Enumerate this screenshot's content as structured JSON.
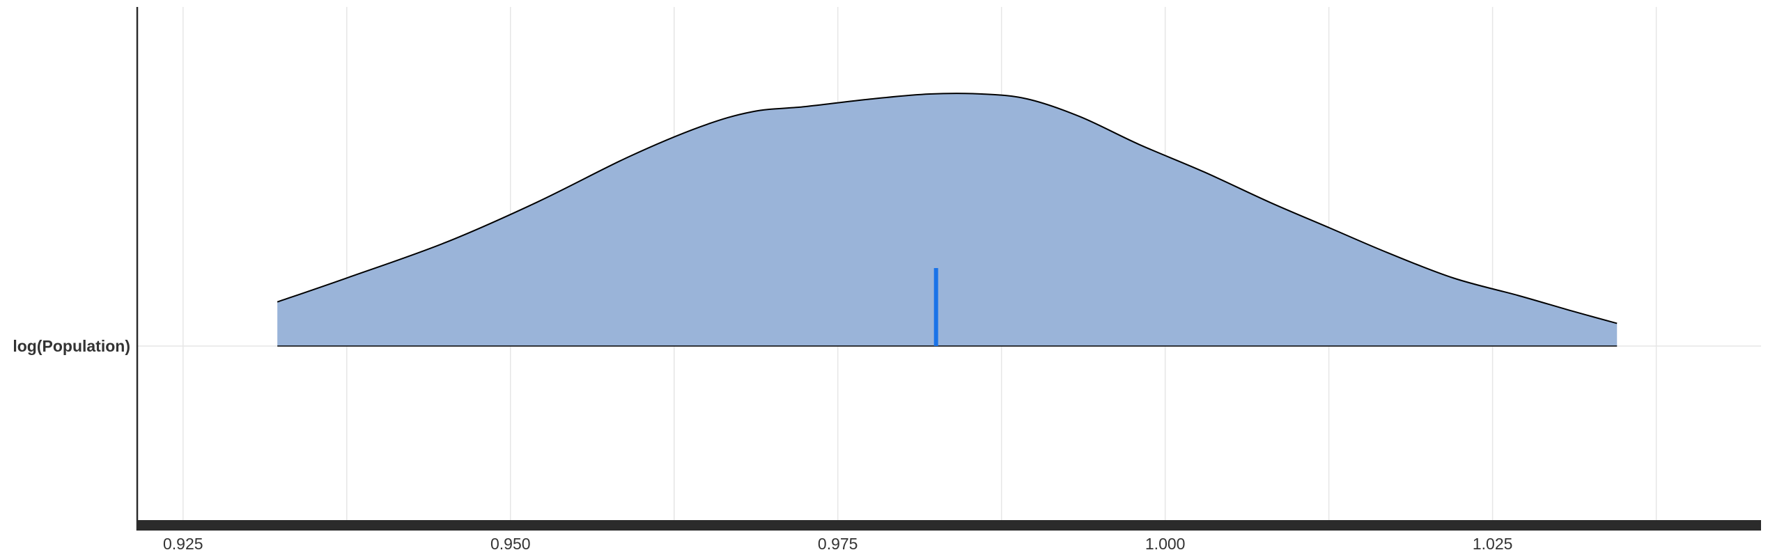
{
  "chart_data": {
    "type": "area",
    "plot_kind": "density ridge",
    "title": "",
    "xlabel": "",
    "ylabel": "",
    "categories": [
      "log(Population)"
    ],
    "xlim": [
      0.9215,
      1.0455
    ],
    "x_ticks": [
      0.925,
      0.95,
      0.975,
      1.0,
      1.025
    ],
    "x_tick_labels": [
      "0.925",
      "0.950",
      "0.975",
      "1.000",
      "1.025"
    ],
    "grid": true,
    "series": [
      {
        "category": "log(Population)",
        "fill_color": "#9ab4d9",
        "line_color": "#000000",
        "density_x": [
          0.9322,
          0.9375,
          0.945,
          0.952,
          0.959,
          0.9645,
          0.9685,
          0.9725,
          0.9775,
          0.982,
          0.986,
          0.9895,
          0.9935,
          0.998,
          1.003,
          1.008,
          1.0125,
          1.017,
          1.022,
          1.027,
          1.031,
          1.0345
        ],
        "density_y": [
          0.175,
          0.27,
          0.41,
          0.57,
          0.75,
          0.87,
          0.93,
          0.95,
          0.98,
          1.0,
          1.0,
          0.98,
          0.91,
          0.8,
          0.69,
          0.57,
          0.47,
          0.37,
          0.27,
          0.2,
          0.14,
          0.09
        ],
        "median": 0.9825,
        "median_color": "#1a73e8"
      }
    ]
  }
}
